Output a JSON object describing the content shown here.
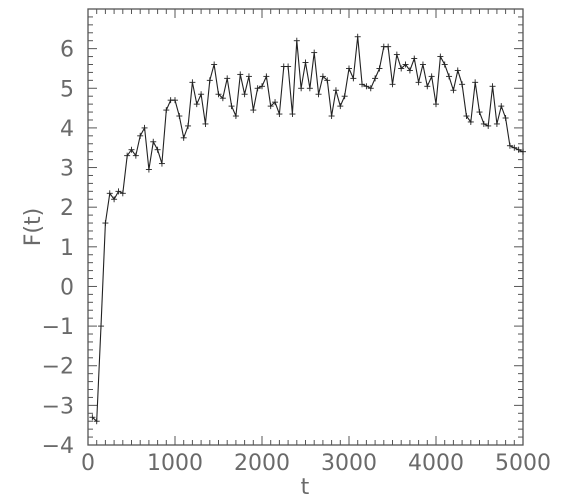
{
  "chart_data": {
    "type": "line",
    "title": "",
    "xlabel": "t",
    "ylabel": "F(t)",
    "xlim": [
      0,
      5000
    ],
    "ylim": [
      -4,
      7
    ],
    "x_ticks": [
      0,
      1000,
      2000,
      3000,
      4000,
      5000
    ],
    "x_tick_labels": [
      "0",
      "1000",
      "2000",
      "3000",
      "4000",
      "5000"
    ],
    "y_ticks": [
      -4,
      -3,
      -2,
      -1,
      0,
      1,
      2,
      3,
      4,
      5,
      6
    ],
    "y_tick_labels": [
      "−4",
      "−3",
      "−2",
      "−1",
      "0",
      "1",
      "2",
      "3",
      "4",
      "5",
      "6"
    ],
    "grid": false,
    "marker": "plus",
    "series": [
      {
        "x": [
          50,
          100,
          150,
          200,
          250,
          300,
          350,
          400,
          450,
          500,
          550,
          600,
          650,
          700,
          750,
          800,
          850,
          900,
          950,
          1000,
          1050,
          1100,
          1150,
          1200,
          1250,
          1300,
          1350,
          1400,
          1450,
          1500,
          1550,
          1600,
          1650,
          1700,
          1750,
          1800,
          1850,
          1900,
          1950,
          2000,
          2050,
          2100,
          2150,
          2200,
          2250,
          2300,
          2350,
          2400,
          2450,
          2500,
          2550,
          2600,
          2650,
          2700,
          2750,
          2800,
          2850,
          2900,
          2950,
          3000,
          3050,
          3100,
          3150,
          3200,
          3250,
          3300,
          3350,
          3400,
          3450,
          3500,
          3550,
          3600,
          3650,
          3700,
          3750,
          3800,
          3850,
          3900,
          3950,
          4000,
          4050,
          4100,
          4150,
          4200,
          4250,
          4300,
          4350,
          4400,
          4450,
          4500,
          4550,
          4600,
          4650,
          4700,
          4750,
          4800,
          4850,
          4900,
          4950,
          5000
        ],
        "values": [
          -3.3,
          -3.4,
          -1.0,
          1.6,
          2.35,
          2.2,
          2.4,
          2.35,
          3.3,
          3.45,
          3.3,
          3.8,
          4.0,
          2.95,
          3.65,
          3.45,
          3.1,
          4.45,
          4.7,
          4.7,
          4.3,
          3.75,
          4.05,
          5.15,
          4.6,
          4.85,
          4.1,
          5.2,
          5.6,
          4.85,
          4.75,
          5.25,
          4.55,
          4.3,
          5.35,
          4.85,
          5.3,
          4.45,
          5.0,
          5.05,
          5.3,
          4.55,
          4.65,
          4.35,
          5.55,
          5.55,
          4.35,
          6.2,
          5.0,
          5.65,
          5.0,
          5.9,
          4.85,
          5.3,
          5.2,
          4.3,
          4.95,
          4.55,
          4.8,
          5.5,
          5.25,
          6.3,
          5.1,
          5.05,
          5.0,
          5.25,
          5.5,
          6.05,
          6.05,
          5.1,
          5.85,
          5.5,
          5.6,
          5.45,
          5.75,
          5.15,
          5.6,
          5.05,
          5.3,
          4.6,
          5.8,
          5.6,
          5.3,
          4.95,
          5.45,
          5.1,
          4.3,
          4.15,
          5.15,
          4.4,
          4.1,
          4.05,
          5.05,
          4.1,
          4.55,
          4.25,
          3.55,
          3.5,
          3.45,
          3.4
        ]
      }
    ]
  }
}
